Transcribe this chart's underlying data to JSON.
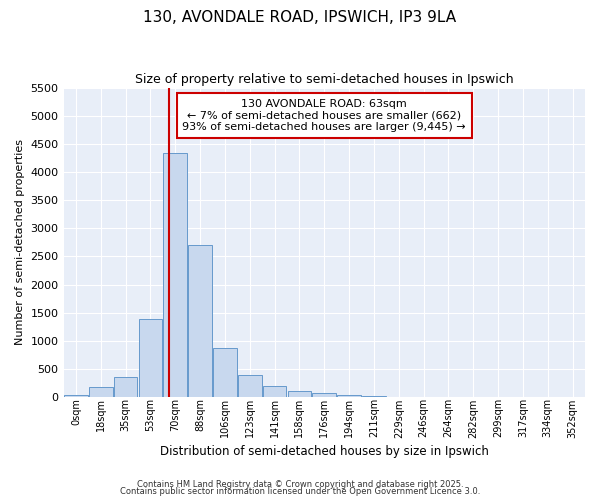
{
  "title": "130, AVONDALE ROAD, IPSWICH, IP3 9LA",
  "subtitle": "Size of property relative to semi-detached houses in Ipswich",
  "xlabel": "Distribution of semi-detached houses by size in Ipswich",
  "ylabel": "Number of semi-detached properties",
  "bar_color": "#c8d8ee",
  "bar_edge_color": "#6699cc",
  "bg_color": "#e8eef8",
  "grid_color": "#ffffff",
  "fig_bg_color": "#ffffff",
  "annotation_box_color": "#cc0000",
  "vline_color": "#cc0000",
  "vline_x": 3.75,
  "annotation_text_line1": "130 AVONDALE ROAD: 63sqm",
  "annotation_text_line2": "← 7% of semi-detached houses are smaller (662)",
  "annotation_text_line3": "93% of semi-detached houses are larger (9,445) →",
  "categories": [
    "0sqm",
    "18sqm",
    "35sqm",
    "53sqm",
    "70sqm",
    "88sqm",
    "106sqm",
    "123sqm",
    "141sqm",
    "158sqm",
    "176sqm",
    "194sqm",
    "211sqm",
    "229sqm",
    "246sqm",
    "264sqm",
    "282sqm",
    "299sqm",
    "317sqm",
    "334sqm",
    "352sqm"
  ],
  "values": [
    30,
    170,
    350,
    1390,
    4340,
    2700,
    870,
    390,
    185,
    100,
    70,
    30,
    10,
    5,
    3,
    2,
    1,
    1,
    0,
    0,
    0
  ],
  "ylim": [
    0,
    5500
  ],
  "yticks": [
    0,
    500,
    1000,
    1500,
    2000,
    2500,
    3000,
    3500,
    4000,
    4500,
    5000,
    5500
  ],
  "footer1": "Contains HM Land Registry data © Crown copyright and database right 2025.",
  "footer2": "Contains public sector information licensed under the Open Government Licence 3.0."
}
